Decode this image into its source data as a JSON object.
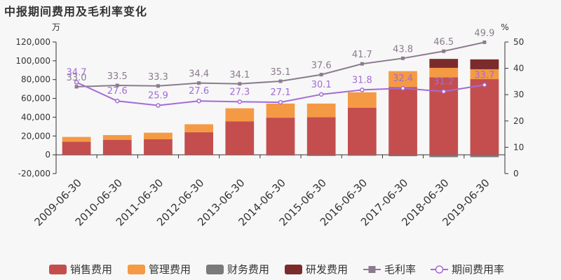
{
  "title": "中报期间费用及毛利率变化",
  "chart_data": {
    "type": "bar",
    "title": "中报期间费用及毛利率变化",
    "categories": [
      "2009-06-30",
      "2010-06-30",
      "2011-06-30",
      "2012-06-30",
      "2013-06-30",
      "2014-06-30",
      "2015-06-30",
      "2016-06-30",
      "2017-06-30",
      "2018-06-30",
      "2019-06-30"
    ],
    "y_left": {
      "unit": "万",
      "min": -20000,
      "max": 120000,
      "ticks": [
        "-20,000",
        "0",
        "20,000",
        "40,000",
        "60,000",
        "80,000",
        "100,000",
        "120,000"
      ]
    },
    "y_right": {
      "unit": "%",
      "min": 0,
      "max": 50,
      "ticks": [
        "0",
        "10",
        "20",
        "30",
        "40",
        "50"
      ]
    },
    "bar_series": [
      {
        "name": "销售费用",
        "color": "#c44e4e",
        "values": [
          14000,
          16000,
          16500,
          24000,
          35500,
          39500,
          40000,
          50000,
          72000,
          82500,
          80500
        ]
      },
      {
        "name": "管理费用",
        "color": "#f59a44",
        "values": [
          5000,
          5000,
          7000,
          8500,
          14000,
          15000,
          14500,
          16500,
          17000,
          10000,
          10500
        ]
      },
      {
        "name": "财务费用",
        "color": "#7a7a7a",
        "values": [
          -200,
          -300,
          -200,
          -200,
          -500,
          -800,
          -1200,
          -1000,
          -1500,
          -2500,
          -2500
        ]
      },
      {
        "name": "研发费用",
        "color": "#7b2b2b",
        "values": [
          0,
          0,
          0,
          0,
          0,
          0,
          0,
          0,
          0,
          9500,
          10500
        ]
      }
    ],
    "line_series": [
      {
        "name": "毛利率",
        "color": "#8c7b8e",
        "marker": "square",
        "values": [
          33.0,
          33.5,
          33.3,
          34.4,
          34.1,
          35.1,
          37.6,
          41.7,
          43.8,
          46.5,
          49.9
        ],
        "labels": [
          "33.0",
          "33.5",
          "33.3",
          "34.4",
          "34.1",
          "35.1",
          "37.6",
          "41.7",
          "43.8",
          "46.5",
          "49.9"
        ]
      },
      {
        "name": "期间费用率",
        "color": "#a46bd6",
        "marker": "circle",
        "values": [
          34.7,
          27.6,
          25.9,
          27.6,
          27.3,
          27.1,
          30.1,
          31.8,
          32.4,
          31.2,
          33.7
        ],
        "labels": [
          "34.7",
          "27.6",
          "25.9",
          "27.6",
          "27.3",
          "27.1",
          "30.1",
          "31.8",
          "32.4",
          "31.2",
          "33.7"
        ]
      }
    ],
    "legend": [
      "销售费用",
      "管理费用",
      "财务费用",
      "研发费用",
      "毛利率",
      "期间费用率"
    ],
    "legend_position": "bottom",
    "grid": false
  }
}
